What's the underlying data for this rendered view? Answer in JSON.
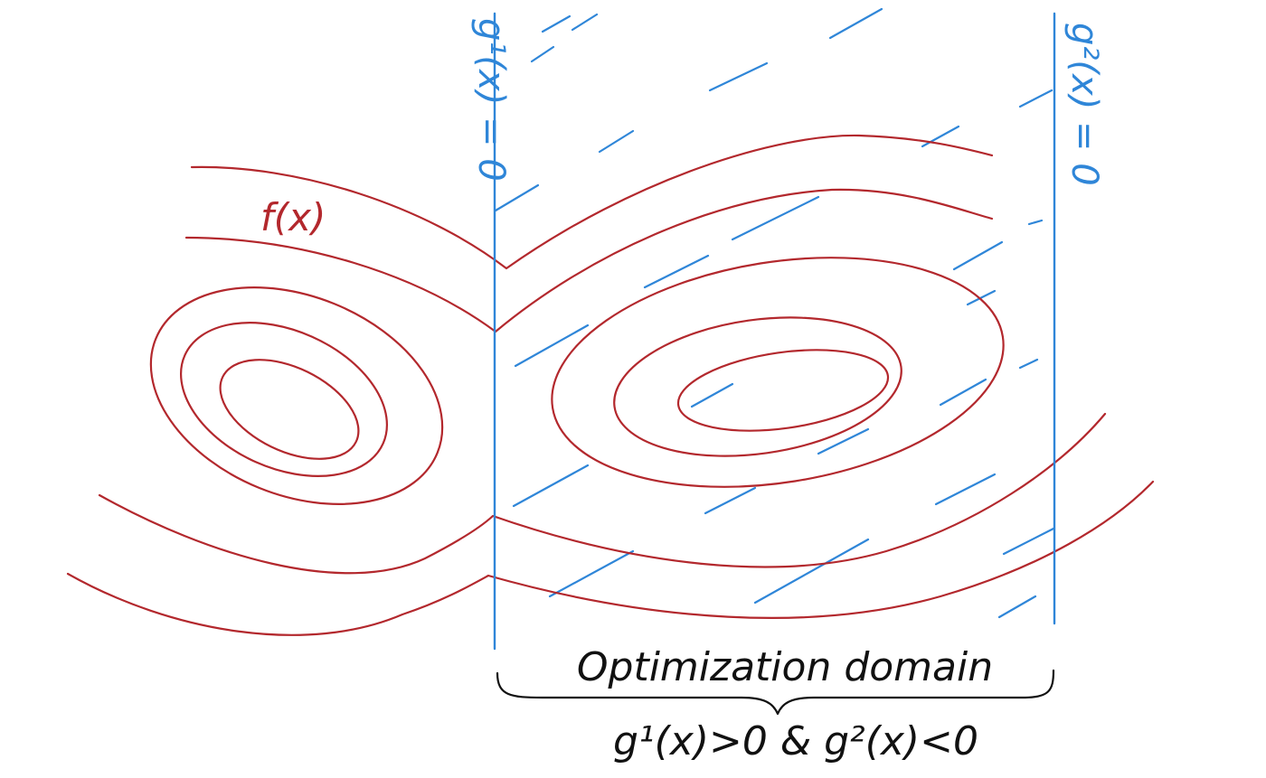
{
  "labels": {
    "function": "f(x)",
    "constraint_1": "g¹(x) = 0",
    "constraint_2": "g²(x) = 0",
    "domain_title": "Optimization domain",
    "domain_condition": "g¹(x)>0 & g²(x)<0"
  },
  "colors": {
    "contour": "#b3282d",
    "constraint": "#2f86d8",
    "ink": "#111111",
    "background": "#ffffff"
  }
}
